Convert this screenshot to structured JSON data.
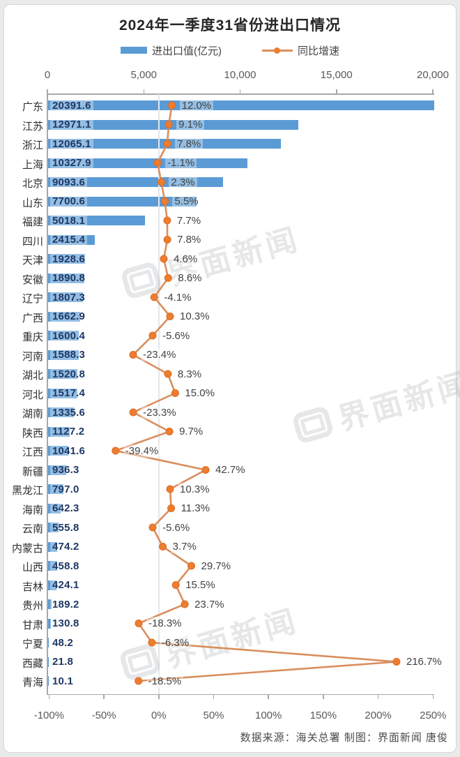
{
  "title": "2024年一季度31省份进出口情况",
  "legend": {
    "bar_label": "进出口值(亿元)",
    "line_label": "同比增速"
  },
  "footer": "数据来源：海关总署  制图：界面新闻 唐俊",
  "watermark": {
    "text": "界面新闻"
  },
  "colors": {
    "bar": "#5B9BD5",
    "line": "#D98E5C",
    "marker": "#ED7D31",
    "marker_edge": "#DD6B1E",
    "value_label": "#1F3864",
    "pct_label": "#424242",
    "axis": "#A8A8A8",
    "tick_label": "#595959",
    "title": "#262626",
    "gridline": "#E3E6EA",
    "page_bg": "#E9EAEA"
  },
  "chart_data": {
    "type": "bar",
    "subtype": "horizontal bars with overlaid line of growth rates",
    "title": "2024年一季度31省份进出口情况",
    "categories": [
      "广东",
      "江苏",
      "浙江",
      "上海",
      "北京",
      "山东",
      "福建",
      "四川",
      "天津",
      "安徽",
      "辽宁",
      "广西",
      "重庆",
      "河南",
      "湖北",
      "河北",
      "湖南",
      "陕西",
      "江西",
      "新疆",
      "黑龙江",
      "海南",
      "云南",
      "内蒙古",
      "山西",
      "吉林",
      "贵州",
      "甘肃",
      "宁夏",
      "西藏",
      "青海"
    ],
    "series": [
      {
        "name": "进出口值(亿元)",
        "type": "bar",
        "axis": "top",
        "unit": "亿元",
        "values": [
          20391.6,
          12971.1,
          12065.1,
          10327.9,
          9093.6,
          7700.6,
          5018.1,
          2415.4,
          1928.6,
          1890.8,
          1807.3,
          1662.9,
          1600.4,
          1588.3,
          1520.8,
          1517.4,
          1335.6,
          1127.2,
          1041.6,
          936.3,
          797.0,
          642.3,
          555.8,
          474.2,
          458.8,
          424.1,
          189.2,
          130.8,
          48.2,
          21.8,
          10.1
        ]
      },
      {
        "name": "同比增速",
        "type": "line",
        "axis": "bottom",
        "unit": "%",
        "values": [
          12.0,
          9.1,
          7.8,
          -1.1,
          2.3,
          5.5,
          7.7,
          7.8,
          4.6,
          8.6,
          -4.1,
          10.3,
          -5.6,
          -23.4,
          8.3,
          15.0,
          -23.3,
          9.7,
          -39.4,
          42.7,
          10.3,
          11.3,
          -5.6,
          3.7,
          29.7,
          15.5,
          23.7,
          -18.3,
          -6.3,
          216.7,
          -18.5
        ]
      }
    ],
    "top_axis": {
      "range": [
        0,
        20000
      ],
      "ticks": [
        0,
        5000,
        10000,
        15000,
        20000
      ],
      "labels": [
        "0",
        "5,000",
        "10,000",
        "15,000",
        "20,000"
      ]
    },
    "bottom_axis": {
      "range": [
        -100,
        250
      ],
      "ticks": [
        -100,
        -50,
        0,
        50,
        100,
        150,
        200,
        250
      ],
      "labels": [
        "-100%",
        "-50%",
        "0%",
        "50%",
        "100%",
        "150%",
        "200%",
        "250%"
      ]
    },
    "gridline_at_pct": 0,
    "legend_position": "top",
    "grid": "single vertical gridline at 0%"
  }
}
